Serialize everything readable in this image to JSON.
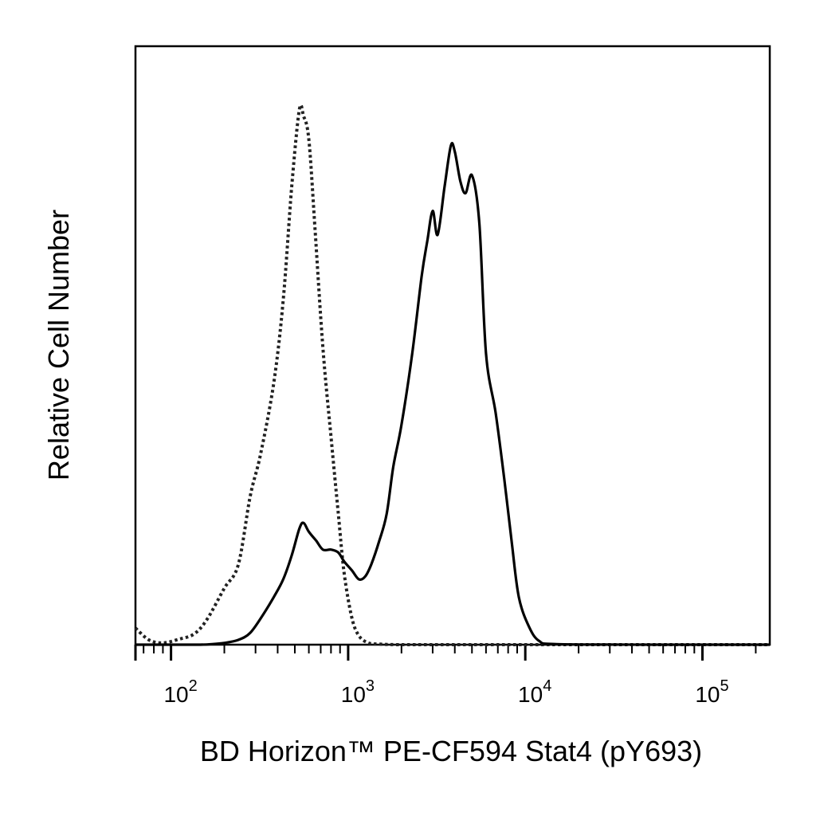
{
  "chart_data": {
    "type": "line",
    "xlabel": "BD Horizon™ PE-CF594 Stat4 (pY693)",
    "ylabel": "Relative Cell Number",
    "x_scale": "log",
    "xlim": [
      63,
      240000
    ],
    "ylim": [
      0,
      100
    ],
    "grid": false,
    "x_ticks": [
      {
        "base": "10",
        "exp": "2",
        "value": 100
      },
      {
        "base": "10",
        "exp": "3",
        "value": 1000
      },
      {
        "base": "10",
        "exp": "4",
        "value": 10000
      },
      {
        "base": "10",
        "exp": "5",
        "value": 100000
      }
    ],
    "series": [
      {
        "style": "dotted",
        "color": "#222222",
        "x": [
          63,
          75,
          90,
          110,
          135,
          160,
          200,
          240,
          280,
          320,
          380,
          430,
          480,
          530,
          560,
          600,
          650,
          720,
          800,
          880,
          950,
          1050,
          1150,
          1300,
          1500,
          2000,
          5000,
          20000,
          100000,
          240000
        ],
        "y": [
          2.8,
          0.8,
          0.3,
          0.9,
          1.8,
          4.3,
          9.5,
          13.5,
          25,
          32,
          44,
          58,
          77,
          90,
          89,
          85,
          70,
          50,
          35,
          22,
          12,
          4.5,
          1.5,
          0.3,
          0.1,
          0,
          0,
          0,
          0,
          0
        ]
      },
      {
        "style": "solid",
        "color": "#000000",
        "x": [
          63,
          140,
          170,
          200,
          240,
          280,
          330,
          380,
          430,
          480,
          530,
          560,
          600,
          660,
          720,
          800,
          880,
          950,
          1050,
          1150,
          1250,
          1350,
          1500,
          1650,
          1800,
          2000,
          2300,
          2600,
          2800,
          3000,
          3200,
          3500,
          3800,
          4000,
          4300,
          4600,
          5000,
          5500,
          6000,
          6800,
          7600,
          8400,
          9200,
          10500,
          12000,
          15000,
          50000,
          240000
        ],
        "y": [
          0,
          0,
          0.1,
          0.3,
          0.8,
          2,
          5,
          8,
          11,
          15,
          19.5,
          20.5,
          19,
          17.5,
          16,
          16,
          15.5,
          14,
          12.5,
          11,
          11.5,
          13.5,
          17.5,
          22,
          30,
          37,
          49,
          62,
          68,
          73,
          69,
          77,
          84,
          83,
          78,
          76,
          79,
          71,
          49,
          39,
          28,
          17,
          8,
          3,
          0.6,
          0.1,
          0,
          0
        ]
      }
    ]
  }
}
